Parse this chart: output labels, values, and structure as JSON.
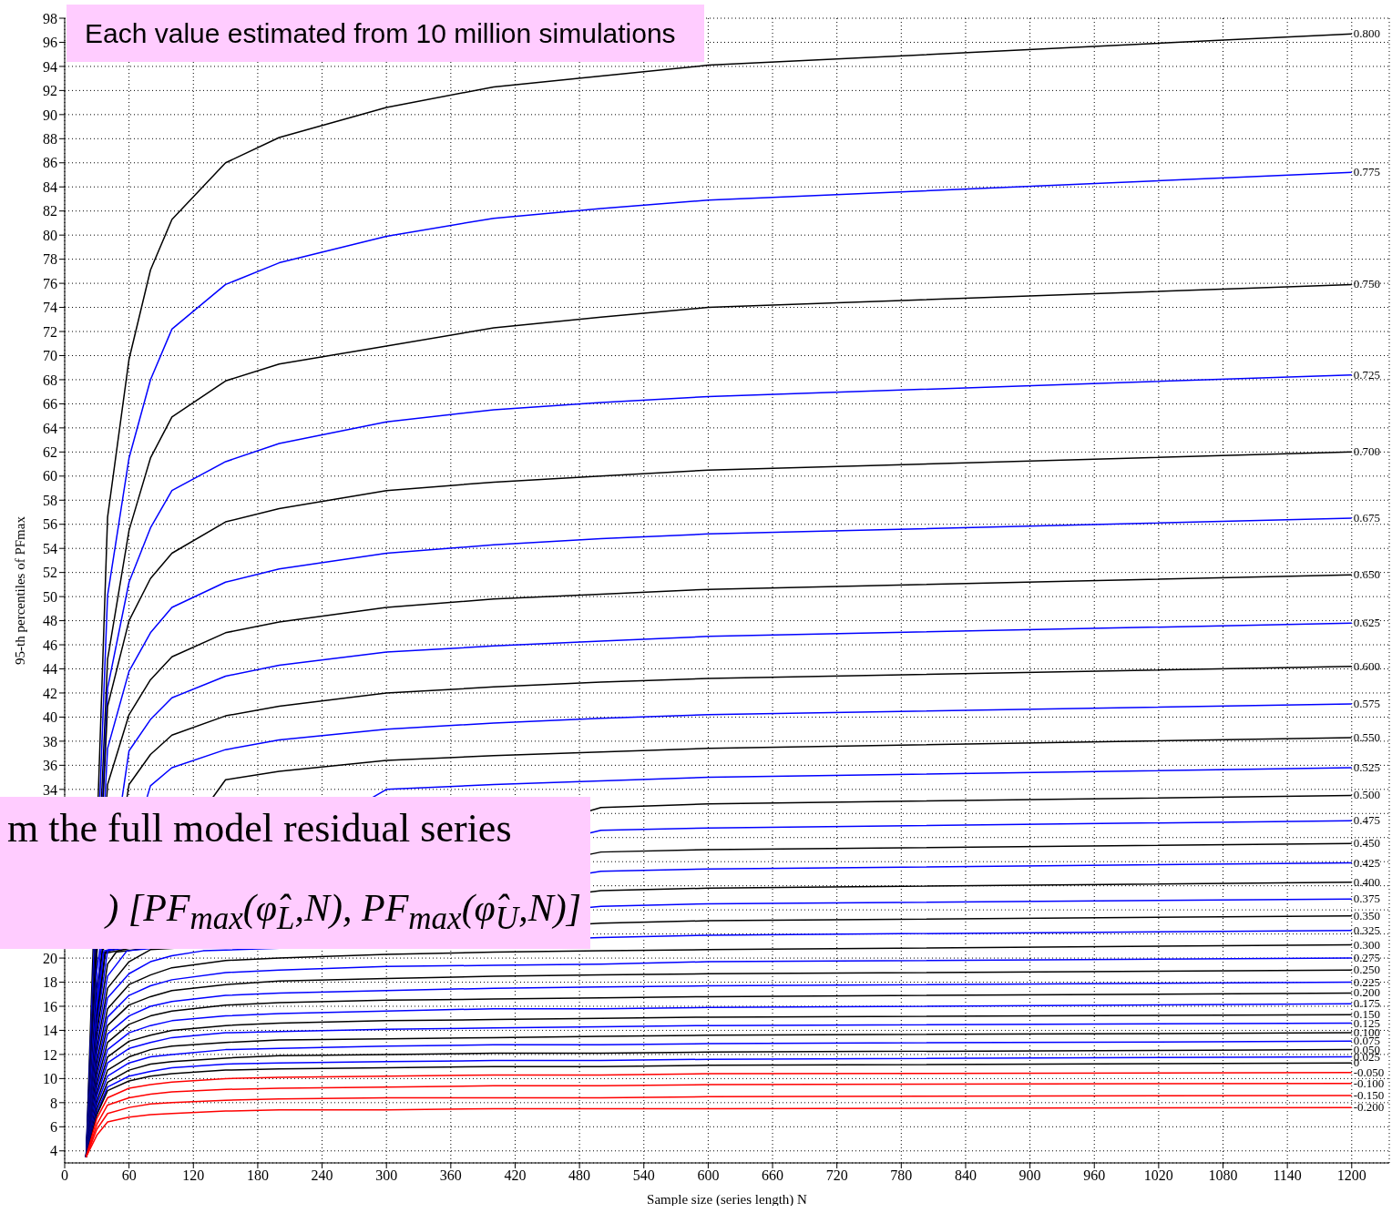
{
  "chart_data": {
    "type": "line",
    "xlabel": "Sample size (series length) N",
    "ylabel": "95-th percentiles of PFmax",
    "annotations": [
      "Each value estimated from 10 million simulations",
      "m the full model residual series",
      ")  [PF$_{max}$(φ̂$_{L}$,N),  PF$_{max}$(φ̂$_{U}$,N)]"
    ],
    "x": [
      20,
      30,
      40,
      60,
      80,
      100,
      150,
      200,
      300,
      400,
      500,
      600,
      1200
    ],
    "xlim": [
      0,
      1235
    ],
    "xticks": [
      0,
      60,
      120,
      180,
      240,
      300,
      360,
      420,
      480,
      540,
      600,
      660,
      720,
      780,
      840,
      900,
      960,
      1020,
      1080,
      1140,
      1200
    ],
    "ylim": [
      3,
      98
    ],
    "yticks": [
      4,
      6,
      8,
      10,
      12,
      14,
      16,
      18,
      20,
      {
        "value": 22,
        "label": null
      },
      {
        "value": 24,
        "label": null
      },
      {
        "value": 26,
        "label": null
      },
      {
        "value": 28,
        "label": null
      },
      {
        "value": 30,
        "label": null
      },
      {
        "value": 32,
        "label": null
      },
      34,
      36,
      38,
      40,
      42,
      44,
      46,
      48,
      50,
      52,
      54,
      56,
      58,
      60,
      62,
      64,
      66,
      68,
      70,
      72,
      74,
      76,
      78,
      80,
      82,
      84,
      86,
      88,
      90,
      92,
      94,
      96,
      98
    ],
    "grid": true,
    "series": [
      {
        "name": "0.800",
        "color": "#000000",
        "values": [
          3.5,
          null,
          56.6,
          69.7,
          77.1,
          81.3,
          86.0,
          88.1,
          90.6,
          92.3,
          93.2,
          94.1,
          96.7
        ]
      },
      {
        "name": "0.775",
        "color": "#0000ff",
        "values": [
          3.5,
          null,
          50.1,
          61.5,
          68.0,
          72.2,
          75.9,
          77.7,
          79.9,
          81.4,
          82.2,
          82.9,
          85.2
        ]
      },
      {
        "name": "0.750",
        "color": "#000000",
        "values": [
          3.5,
          null,
          44.8,
          55.5,
          61.5,
          64.9,
          67.9,
          69.3,
          70.8,
          72.3,
          73.2,
          74.0,
          75.9
        ]
      },
      {
        "name": "0.725",
        "color": "#0000ff",
        "values": [
          3.5,
          null,
          42.4,
          51.2,
          55.7,
          58.8,
          61.2,
          62.7,
          64.5,
          65.5,
          66.1,
          66.6,
          68.4
        ]
      },
      {
        "name": "0.700",
        "color": "#000000",
        "values": [
          3.5,
          null,
          40.9,
          48.0,
          51.5,
          53.6,
          56.2,
          57.3,
          58.8,
          59.5,
          60.0,
          60.5,
          62.0
        ]
      },
      {
        "name": "0.675",
        "color": "#0000ff",
        "values": [
          3.5,
          null,
          37.4,
          43.8,
          47.0,
          49.1,
          51.2,
          52.3,
          53.6,
          54.3,
          54.8,
          55.2,
          56.5
        ]
      },
      {
        "name": "0.650",
        "color": "#000000",
        "values": [
          3.5,
          20.4,
          34.4,
          40.2,
          43.1,
          45.0,
          47.0,
          47.9,
          49.1,
          49.8,
          50.2,
          50.6,
          51.8
        ]
      },
      {
        "name": "0.625",
        "color": "#0000ff",
        "values": [
          3.5,
          19.0,
          null,
          37.2,
          39.8,
          41.6,
          43.4,
          44.3,
          45.4,
          45.9,
          46.3,
          46.7,
          47.8
        ]
      },
      {
        "name": "0.600",
        "color": "#000000",
        "values": [
          3.5,
          17.7,
          null,
          34.4,
          36.9,
          38.5,
          40.1,
          40.9,
          42.0,
          42.5,
          42.9,
          43.2,
          44.2
        ]
      },
      {
        "name": "0.575",
        "color": "#0000ff",
        "x": [
          20,
          30,
          33.5,
          80,
          100,
          150,
          200,
          300,
          400,
          500,
          600,
          1200
        ],
        "values": [
          3.5,
          16.7,
          20.5,
          34.3,
          35.8,
          37.3,
          38.1,
          39.0,
          39.5,
          39.9,
          40.2,
          41.1
        ]
      },
      {
        "name": "0.550",
        "color": "#000000",
        "x": [
          20,
          30,
          35,
          150,
          200,
          300,
          400,
          500,
          600,
          1200
        ],
        "values": [
          3.5,
          15.7,
          20.6,
          34.8,
          35.5,
          36.4,
          36.8,
          37.1,
          37.4,
          38.3
        ]
      },
      {
        "name": "0.525",
        "color": "#0000ff",
        "x": [
          20,
          30,
          36,
          300,
          400,
          500,
          600,
          1200
        ],
        "values": [
          3.5,
          14.8,
          20.4,
          34.0,
          34.4,
          34.7,
          35.0,
          35.8
        ]
      },
      {
        "name": "0.500",
        "color": "#000000",
        "x": [
          20,
          30,
          37.5,
          500,
          600,
          1200
        ],
        "values": [
          3.5,
          14.0,
          20.5,
          32.5,
          32.8,
          33.5
        ]
      },
      {
        "name": "0.475",
        "color": "#0000ff",
        "x": [
          20,
          30,
          36.5,
          500,
          600,
          1200
        ],
        "values": [
          3.5,
          16.1,
          20.6,
          30.6,
          30.8,
          31.4
        ]
      },
      {
        "name": "0.450",
        "color": "#000000",
        "x": [
          20,
          30,
          38,
          500,
          600,
          1200
        ],
        "values": [
          3.5,
          15.2,
          20.4,
          28.8,
          29.0,
          29.5
        ]
      },
      {
        "name": "0.425",
        "color": "#0000ff",
        "values": [
          3.5,
          14.5,
          20.6,
          null,
          null,
          null,
          null,
          null,
          null,
          null,
          27.2,
          27.4,
          27.9
        ]
      },
      {
        "name": "0.400",
        "color": "#000000",
        "x": [
          20,
          30,
          40,
          48,
          500,
          600,
          1200
        ],
        "values": [
          3.5,
          13.8,
          19.5,
          20.5,
          25.6,
          25.8,
          26.3
        ]
      },
      {
        "name": "0.375",
        "color": "#0000ff",
        "x": [
          20,
          30,
          40,
          58,
          500,
          600,
          1200
        ],
        "values": [
          3.5,
          13.1,
          18.5,
          20.6,
          24.3,
          24.5,
          24.9
        ]
      },
      {
        "name": "0.350",
        "color": "#000000",
        "values": [
          3.5,
          12.5,
          17.5,
          19.7,
          20.7,
          null,
          null,
          null,
          null,
          null,
          22.9,
          23.1,
          23.5
        ]
      },
      {
        "name": "0.325",
        "color": "#0000ff",
        "x": [
          20,
          30,
          40,
          60,
          80,
          100,
          129,
          500,
          600,
          1200
        ],
        "values": [
          3.5,
          12.0,
          16.7,
          18.7,
          19.7,
          20.2,
          20.6,
          21.7,
          21.9,
          22.3
        ]
      },
      {
        "name": "0.300",
        "color": "#000000",
        "values": [
          3.5,
          11.4,
          15.8,
          17.8,
          18.6,
          19.2,
          19.8,
          20.0,
          20.3,
          20.5,
          20.6,
          20.7,
          21.1
        ]
      },
      {
        "name": "0.275",
        "color": "#0000ff",
        "values": [
          3.5,
          10.9,
          15.1,
          16.9,
          17.7,
          18.2,
          18.8,
          19.0,
          19.3,
          19.4,
          19.5,
          19.7,
          20.0
        ]
      },
      {
        "name": "0.250",
        "color": "#000000",
        "values": [
          3.5,
          10.5,
          14.4,
          16.1,
          16.8,
          17.3,
          17.8,
          18.1,
          18.3,
          18.5,
          18.6,
          18.7,
          19.0
        ]
      },
      {
        "name": "0.225",
        "color": "#0000ff",
        "values": [
          3.5,
          10.0,
          13.7,
          15.2,
          16.0,
          16.4,
          16.9,
          17.1,
          17.3,
          17.5,
          17.6,
          17.7,
          18.0
        ]
      },
      {
        "name": "0.200",
        "color": "#000000",
        "values": [
          3.5,
          9.6,
          13.0,
          14.5,
          15.2,
          15.6,
          16.1,
          16.3,
          16.5,
          16.6,
          16.7,
          16.8,
          17.1
        ]
      },
      {
        "name": "0.175",
        "color": "#0000ff",
        "values": [
          3.5,
          9.2,
          12.4,
          13.8,
          14.4,
          14.8,
          15.2,
          15.4,
          15.6,
          15.8,
          15.8,
          15.9,
          16.2
        ]
      },
      {
        "name": "0.150",
        "color": "#000000",
        "values": [
          3.5,
          8.8,
          11.8,
          13.1,
          13.6,
          14.0,
          14.4,
          14.6,
          14.8,
          14.9,
          15.0,
          15.1,
          15.3
        ]
      },
      {
        "name": "0.125",
        "color": "#0000ff",
        "values": [
          3.5,
          8.5,
          11.3,
          12.5,
          13.0,
          13.4,
          13.8,
          13.9,
          14.1,
          14.2,
          14.3,
          14.4,
          14.6
        ]
      },
      {
        "name": "0.100",
        "color": "#000000",
        "values": [
          3.5,
          8.1,
          10.7,
          11.8,
          12.4,
          12.7,
          13.0,
          13.2,
          13.3,
          13.4,
          13.5,
          13.6,
          13.8
        ]
      },
      {
        "name": "0.075",
        "color": "#0000ff",
        "values": [
          3.5,
          7.8,
          10.2,
          11.3,
          11.8,
          12.0,
          12.4,
          12.5,
          12.7,
          12.8,
          12.8,
          12.9,
          13.1
        ]
      },
      {
        "name": "0.050",
        "color": "#000000",
        "values": [
          3.5,
          7.5,
          9.7,
          10.7,
          11.2,
          11.4,
          11.7,
          11.9,
          12.0,
          12.1,
          12.1,
          12.2,
          12.4
        ]
      },
      {
        "name": "0.025",
        "color": "#0000ff",
        "values": [
          3.5,
          7.2,
          9.3,
          10.2,
          10.6,
          10.9,
          11.2,
          11.3,
          11.4,
          11.5,
          11.5,
          11.6,
          11.8
        ]
      },
      {
        "name": "0",
        "color": "#000000",
        "values": [
          3.5,
          7.0,
          9.0,
          9.8,
          10.2,
          10.4,
          10.7,
          10.8,
          10.9,
          11.0,
          11.0,
          11.1,
          11.3
        ]
      },
      {
        "name": "-0.050",
        "color": "#ff0000",
        "values": [
          3.5,
          6.7,
          8.4,
          9.2,
          9.5,
          9.7,
          10.0,
          10.1,
          10.2,
          10.3,
          10.3,
          10.4,
          10.5
        ]
      },
      {
        "name": "-0.100",
        "color": "#ff0000",
        "values": [
          3.5,
          6.2,
          7.8,
          8.4,
          8.7,
          8.9,
          9.1,
          9.2,
          9.3,
          9.4,
          9.4,
          9.5,
          9.6
        ]
      },
      {
        "name": "-0.150",
        "color": "#ff0000",
        "values": [
          3.5,
          5.8,
          7.1,
          7.6,
          7.9,
          8.0,
          8.2,
          8.3,
          8.4,
          8.4,
          8.4,
          8.5,
          8.6
        ]
      },
      {
        "name": "-0.200",
        "color": "#ff0000",
        "values": [
          3.5,
          5.3,
          6.4,
          6.8,
          7.0,
          7.1,
          7.3,
          7.4,
          7.4,
          7.5,
          7.5,
          7.5,
          7.6
        ]
      }
    ]
  }
}
